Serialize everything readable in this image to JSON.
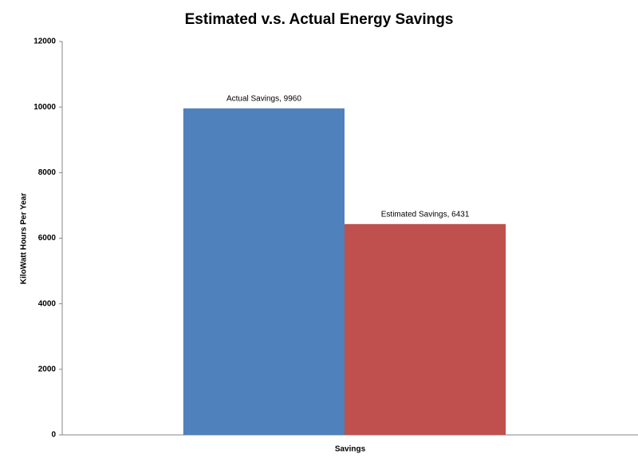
{
  "chart_data": {
    "type": "bar",
    "title": "Estimated v.s. Actual Energy Savings",
    "y_label": "KiloWatt Hours Per Year",
    "categories": [
      "Savings"
    ],
    "series": [
      {
        "name": "Actual Savings",
        "color": "#4f81bd",
        "values": [
          9960
        ],
        "value_labels": [
          "Actual Savings, 9960"
        ]
      },
      {
        "name": "Estimated Savings",
        "color": "#c0504d",
        "values": [
          6431
        ],
        "value_labels": [
          "Estimated Savings, 6431"
        ]
      }
    ],
    "ylim": [
      0,
      12000
    ],
    "yticks": [
      0,
      2000,
      4000,
      6000,
      8000,
      10000,
      12000
    ],
    "grid": false,
    "legend": false
  }
}
